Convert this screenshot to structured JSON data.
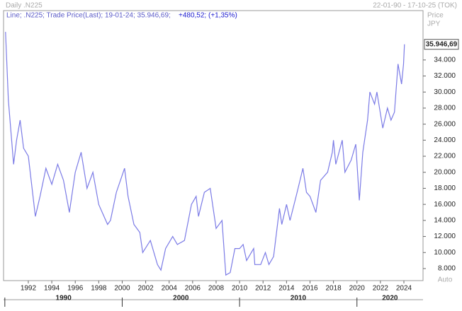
{
  "chart_data": {
    "type": "line",
    "header": "Daily .N225",
    "date_range": "22-01-90 - 17-10-25 (TOK)",
    "axis_label": "Price",
    "unit": "JPY",
    "legend": "Line; .N225; Trade Price(Last); 19-01-24; 35.946,69;",
    "change": "+480,52; (+1,35%)",
    "scale_mode": "Auto",
    "last_value_label": "35.946,69",
    "series": [
      {
        "name": ".N225",
        "color": "#7b7be6",
        "x": [
          1990.06,
          1990.3,
          1990.75,
          1991.0,
          1991.3,
          1991.6,
          1992.0,
          1992.6,
          1993.0,
          1993.5,
          1994.0,
          1994.5,
          1995.0,
          1995.5,
          1996.0,
          1996.5,
          1997.0,
          1997.5,
          1998.0,
          1998.75,
          1999.0,
          1999.5,
          2000.2,
          2000.5,
          2001.0,
          2001.5,
          2001.75,
          2002.4,
          2003.0,
          2003.3,
          2003.7,
          2004.3,
          2004.7,
          2005.3,
          2005.9,
          2006.3,
          2006.5,
          2007.0,
          2007.5,
          2008.0,
          2008.5,
          2008.83,
          2009.2,
          2009.6,
          2010.0,
          2010.3,
          2010.6,
          2011.2,
          2011.3,
          2011.8,
          2012.2,
          2012.5,
          2012.9,
          2013.4,
          2013.6,
          2014.0,
          2014.3,
          2014.9,
          2015.4,
          2015.7,
          2016.0,
          2016.5,
          2016.9,
          2017.5,
          2017.9,
          2018.0,
          2018.2,
          2018.75,
          2018.98,
          2019.5,
          2019.9,
          2020.2,
          2020.5,
          2020.9,
          2021.1,
          2021.5,
          2021.7,
          2022.2,
          2022.6,
          2022.9,
          2023.2,
          2023.5,
          2023.8,
          2023.97,
          2024.05
        ],
        "values": [
          37500,
          29000,
          21000,
          24000,
          26500,
          23000,
          22000,
          14500,
          17000,
          20500,
          18500,
          21000,
          19000,
          15000,
          20000,
          22500,
          18000,
          20000,
          16000,
          13500,
          14000,
          17500,
          20500,
          17000,
          13500,
          12500,
          10000,
          11500,
          8500,
          7800,
          10500,
          12000,
          11000,
          11500,
          16000,
          17000,
          14500,
          17500,
          18000,
          13000,
          14000,
          7200,
          7500,
          10500,
          10500,
          11000,
          9000,
          10500,
          8500,
          8500,
          10000,
          8500,
          9500,
          15500,
          13500,
          16000,
          14000,
          17500,
          20500,
          17500,
          17000,
          15000,
          19000,
          20000,
          22500,
          24000,
          21000,
          24000,
          20000,
          21500,
          23500,
          16500,
          22500,
          26500,
          30000,
          28500,
          30000,
          25500,
          28000,
          26500,
          27500,
          33500,
          31000,
          33500,
          35946.69
        ]
      }
    ],
    "xlim": [
      1989.89,
      2025.63
    ],
    "xticks": [
      1992,
      1994,
      1996,
      1998,
      2000,
      2002,
      2004,
      2006,
      2008,
      2010,
      2012,
      2014,
      2016,
      2018,
      2020,
      2022,
      2024
    ],
    "decades": [
      1990,
      2000,
      2010,
      2020
    ],
    "ylim": [
      6500,
      40150
    ],
    "yticks": [
      {
        "value": 8000,
        "label": "8.000"
      },
      {
        "value": 10000,
        "label": "10.000"
      },
      {
        "value": 12000,
        "label": "12.000"
      },
      {
        "value": 14000,
        "label": "14.000"
      },
      {
        "value": 16000,
        "label": "16.000"
      },
      {
        "value": 18000,
        "label": "18.000"
      },
      {
        "value": 20000,
        "label": "20.000"
      },
      {
        "value": 22000,
        "label": "22.000"
      },
      {
        "value": 24000,
        "label": "24.000"
      },
      {
        "value": 26000,
        "label": "26.000"
      },
      {
        "value": 28000,
        "label": "28.000"
      },
      {
        "value": 30000,
        "label": "30.000"
      },
      {
        "value": 32000,
        "label": "32.000"
      },
      {
        "value": 34000,
        "label": "34.000"
      }
    ]
  }
}
